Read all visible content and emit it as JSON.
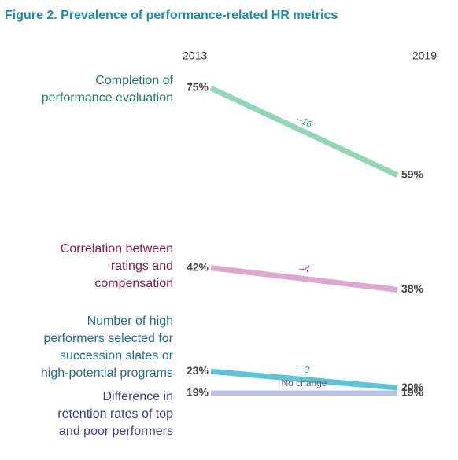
{
  "chart_data": {
    "type": "slope",
    "title": "Figure 2. Prevalence of performance-related HR metrics",
    "categories": [
      "2013",
      "2019"
    ],
    "series": [
      {
        "name": [
          "Completion of",
          "performance evaluation"
        ],
        "color": "#93d6b6",
        "label_color": "#1f7d68",
        "values": [
          75,
          59
        ],
        "value_labels": [
          "75%",
          "59%"
        ],
        "annotation": "–16",
        "annotation_color": "#2a9f78"
      },
      {
        "name": [
          "Correlation between",
          "ratings and",
          "compensation"
        ],
        "color": "#dda7d0",
        "label_color": "#8a1a4c",
        "values": [
          42,
          38
        ],
        "value_labels": [
          "42%",
          "38%"
        ],
        "annotation": "–4",
        "annotation_color": "#a0267a"
      },
      {
        "name": [
          "Number of high",
          "performers selected for",
          "succession slates or",
          "high-potential programs"
        ],
        "color": "#5cc5d5",
        "label_color": "#1f6e96",
        "values": [
          23,
          20
        ],
        "value_labels": [
          "23%",
          "20%"
        ],
        "annotation": "–3",
        "annotation_color": "#2a8fb2"
      },
      {
        "name": [
          "Difference in",
          "retention rates of top",
          "and poor performers"
        ],
        "color": "#bac4e2",
        "label_color": "#3a3f8d",
        "values": [
          19,
          19
        ],
        "value_labels": [
          "19%",
          "19%"
        ],
        "annotation": "No change",
        "annotation_color": "#5a6070"
      }
    ]
  }
}
